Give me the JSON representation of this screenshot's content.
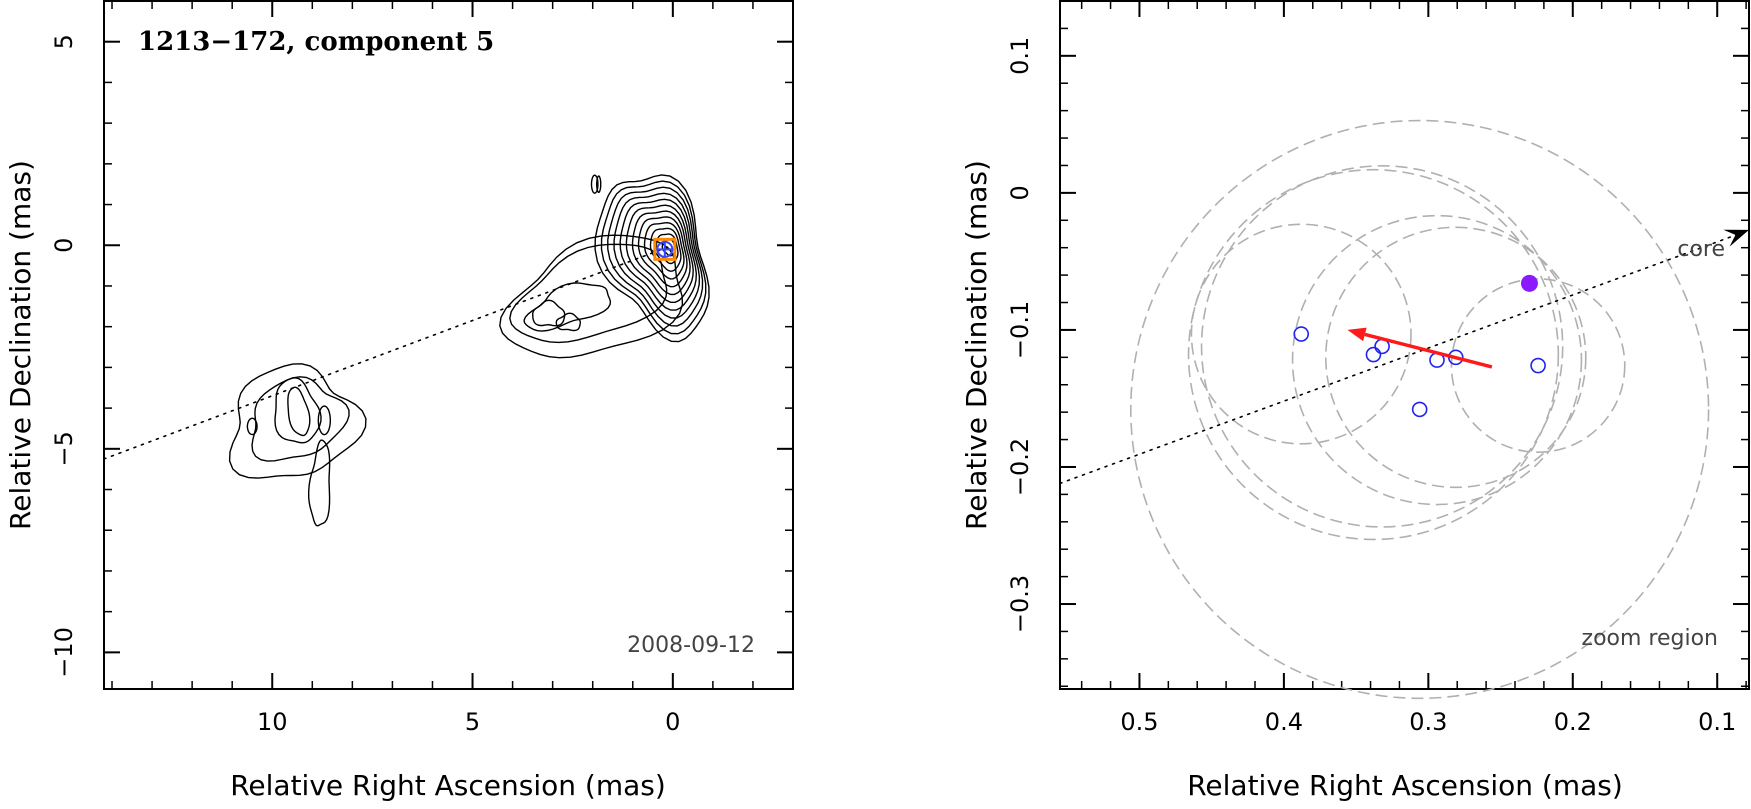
{
  "chart_data": [
    {
      "type": "contour",
      "title": "1213−172, component 5",
      "date_label": "2008-09-12",
      "xlabel": "Relative Right Ascension (mas)",
      "ylabel": "Relative Declination (mas)",
      "xlim": [
        14.2,
        -3.0
      ],
      "ylim": [
        -10.9,
        6.0
      ],
      "x_ticks": [
        10,
        5,
        0
      ],
      "x_tick_labels": [
        "10",
        "5",
        "0"
      ],
      "y_ticks": [
        5,
        0,
        -5,
        -10
      ],
      "y_tick_labels": [
        "5",
        "0",
        "−5",
        "−10"
      ],
      "jet_axis": {
        "x": [
          14.2,
          0
        ],
        "y": [
          -5.25,
          0
        ]
      },
      "component_marker": {
        "x": 0.2,
        "y": -0.1,
        "label": "component 5"
      },
      "contour_levels": 12
    },
    {
      "type": "scatter",
      "zoom_label": "zoom region",
      "core_label": "core",
      "xlabel": "Relative Right Ascension (mas)",
      "ylabel": "Relative Declination (mas)",
      "xlim": [
        0.555,
        0.078
      ],
      "ylim": [
        -0.362,
        0.14
      ],
      "x_ticks": [
        0.5,
        0.4,
        0.3,
        0.2,
        0.1
      ],
      "x_tick_labels": [
        "0.5",
        "0.4",
        "0.3",
        "0.2",
        "0.1"
      ],
      "y_ticks": [
        0.1,
        0,
        -0.1,
        -0.2,
        -0.3
      ],
      "y_tick_labels": [
        "0.1",
        "0",
        "−0.1",
        "−0.2",
        "−0.3"
      ],
      "points": [
        {
          "x": 0.388,
          "y": -0.103,
          "r": 0.076
        },
        {
          "x": 0.338,
          "y": -0.118,
          "r": 0.128
        },
        {
          "x": 0.332,
          "y": -0.112,
          "r": 0.125
        },
        {
          "x": 0.294,
          "y": -0.122,
          "r": 0.1
        },
        {
          "x": 0.281,
          "y": -0.12,
          "r": 0.09
        },
        {
          "x": 0.306,
          "y": -0.158,
          "r": 0.2
        },
        {
          "x": 0.224,
          "y": -0.126,
          "r": 0.06
        }
      ],
      "mean_position": {
        "x": 0.23,
        "y": -0.066
      },
      "velocity_vector": {
        "x0": 0.256,
        "y0": -0.127,
        "x1": 0.356,
        "y1": -0.1
      },
      "core_direction": {
        "x": [
          0.555,
          0.078
        ],
        "y": [
          -0.212,
          -0.027
        ]
      }
    }
  ]
}
